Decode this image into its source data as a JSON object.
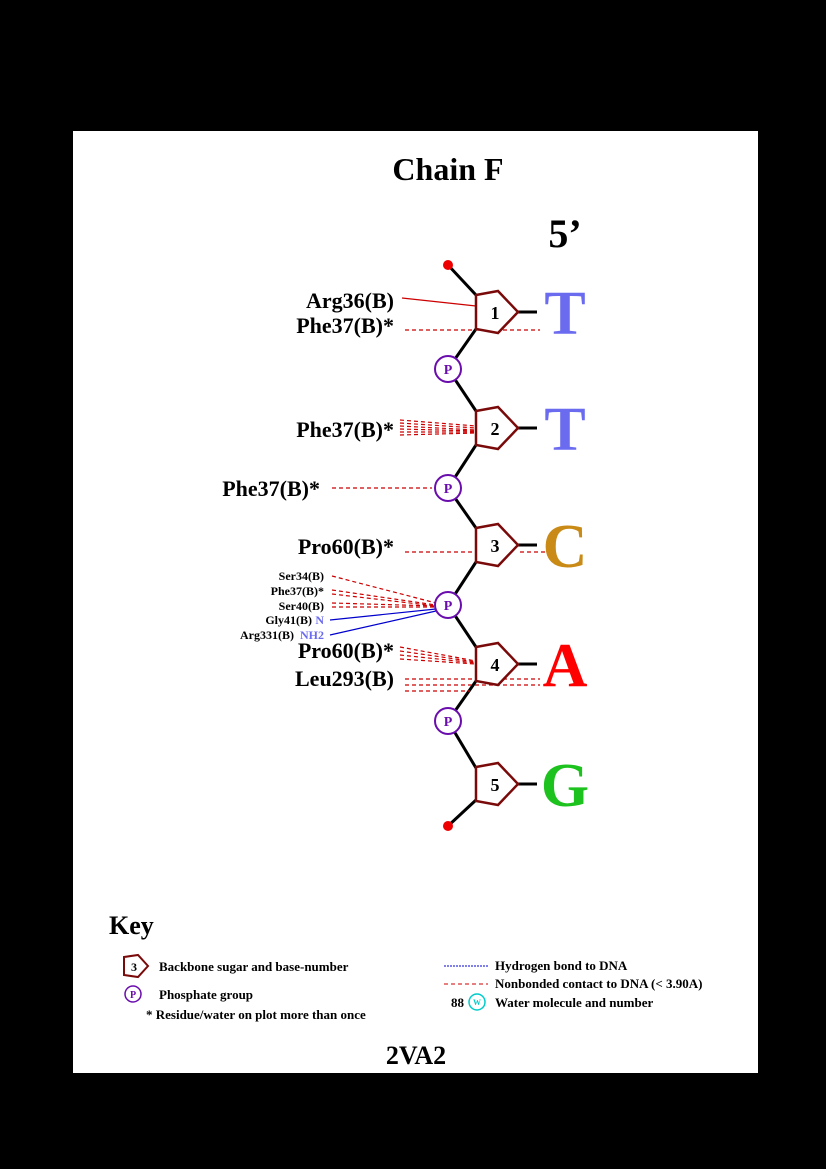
{
  "title": "Chain F",
  "end_label": "5’",
  "footer_id": "2VA2",
  "colors": {
    "sugar": "#7a0a0a",
    "phosphate": "#6a0dad",
    "hbond": "#0000cc",
    "nonbonded": "#cc0000",
    "end_dot": "#ee0000",
    "base_T": "#6b6bf0",
    "base_C": "#c98a16",
    "base_A": "#ff0000",
    "base_G": "#1ec21e",
    "water": "#00cccc",
    "atom_N": "#6b6bf0"
  },
  "nucleotides": [
    {
      "number": "1",
      "base": "T"
    },
    {
      "number": "2",
      "base": "T"
    },
    {
      "number": "3",
      "base": "C"
    },
    {
      "number": "4",
      "base": "A"
    },
    {
      "number": "5",
      "base": "G"
    }
  ],
  "phosphate_label": "P",
  "residues": {
    "arg36": "Arg36(B)",
    "phe37_1": "Phe37(B)*",
    "phe37_2": "Phe37(B)*",
    "phe37_p2": "Phe37(B)*",
    "pro60_3": "Pro60(B)*",
    "ser34": "Ser34(B)",
    "phe37_p3": "Phe37(B)*",
    "ser40": "Ser40(B)",
    "gly41": "Gly41(B)",
    "gly41_atom": "N",
    "arg331": "Arg331(B)",
    "arg331_atom": "NH2",
    "pro60_4": "Pro60(B)*",
    "leu293": "Leu293(B)"
  },
  "key": {
    "title": "Key",
    "sugar_number": "3",
    "sugar_label": "Backbone sugar and base-number",
    "phosphate_label": "Phosphate group",
    "repeat_label": "* Residue/water on plot more than once",
    "hbond_label": "Hydrogen bond to DNA",
    "nonbonded_label": "Nonbonded contact to DNA (< 3.90A)",
    "water_number": "88",
    "water_symbol": "W",
    "water_label": "Water molecule and number"
  }
}
